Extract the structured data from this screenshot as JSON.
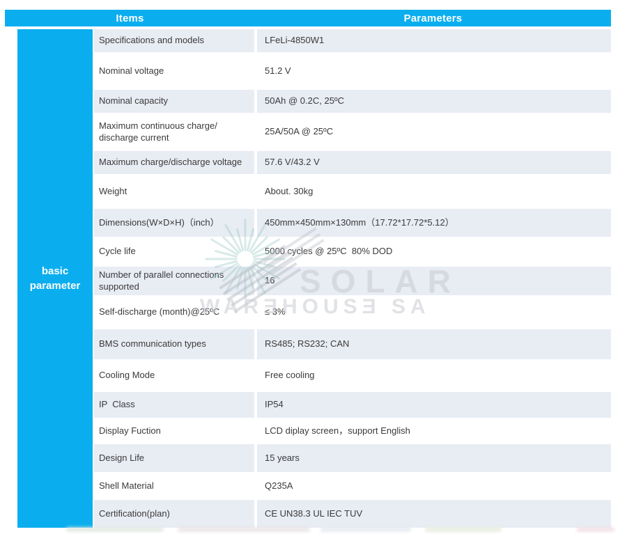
{
  "header": {
    "items_label": "Items",
    "parameters_label": "Parameters"
  },
  "sidebar": {
    "label": "basic parameter"
  },
  "table": {
    "rows": [
      {
        "item": "Specifications and models",
        "value": "LFeLi-4850W1"
      },
      {
        "item": "Nominal voltage",
        "value": "51.2 V"
      },
      {
        "item": "Nominal capacity",
        "value": "50Ah @ 0.2C, 25ºC"
      },
      {
        "item": "Maximum continuous charge/ discharge current",
        "value": "25A/50A @ 25ºC"
      },
      {
        "item": "Maximum charge/discharge voltage",
        "value": "57.6 V/43.2 V"
      },
      {
        "item": "Weight",
        "value": "About. 30kg"
      },
      {
        "item": "Dimensions(W×D×H)（inch）",
        "value": "450mm×450mm×130mm（17.72*17.72*5.12）"
      },
      {
        "item": "Cycle life",
        "value": "5000 cycles @ 25ºC  80% DOD"
      },
      {
        "item": "Number of parallel connections supported",
        "value": "16"
      },
      {
        "item": "Self-discharge (month)@25ºC",
        "value": "≤ 3%"
      },
      {
        "item": "BMS communication types",
        "value": "RS485; RS232; CAN"
      },
      {
        "item": "Cooling Mode",
        "value": "Free cooling"
      },
      {
        "item": "IP  Class",
        "value": "IP54"
      },
      {
        "item": "Display Fuction",
        "value": "LCD diplay screen，support English"
      },
      {
        "item": "Design Life",
        "value": "15 years"
      },
      {
        "item": "Shell Material",
        "value": "Q235A"
      },
      {
        "item": "Certification(plan)",
        "value": "CE UN38.3 UL IEC TUV"
      }
    ]
  },
  "watermark": {
    "line1": "SOLAR",
    "line2": "WARƎHOUSƎ SA"
  },
  "colors": {
    "accent_cyan": "#0aaeef",
    "row_shade": "#e8ecf3",
    "header_text": "#ffffff",
    "body_text": "#3a3a3a",
    "watermark_gray": "#c9ccd2"
  }
}
